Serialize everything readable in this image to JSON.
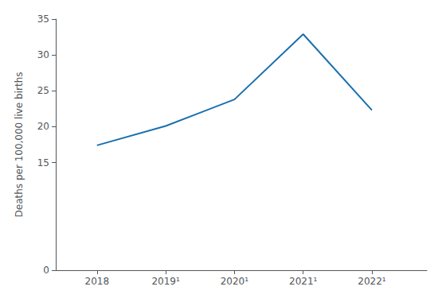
{
  "chart_data": {
    "type": "line",
    "ylabel": "Deaths per 100,000 live births",
    "x": [
      2018,
      2019,
      2020,
      2021,
      2022
    ],
    "values": [
      17.4,
      20.1,
      23.8,
      32.9,
      22.3
    ],
    "color": "#1a6fad",
    "xlim": [
      2017.4,
      2022.8
    ],
    "xticks": [
      2018,
      {
        "value": 2019,
        "label": "2019¹"
      },
      {
        "value": 2020,
        "label": "2020¹"
      },
      {
        "value": 2021,
        "label": "2021¹"
      },
      {
        "value": 2022,
        "label": "2022¹"
      }
    ],
    "ylim": [
      0,
      35
    ],
    "yticks": [
      0,
      15,
      20,
      25,
      30,
      35
    ],
    "grid": false
  }
}
